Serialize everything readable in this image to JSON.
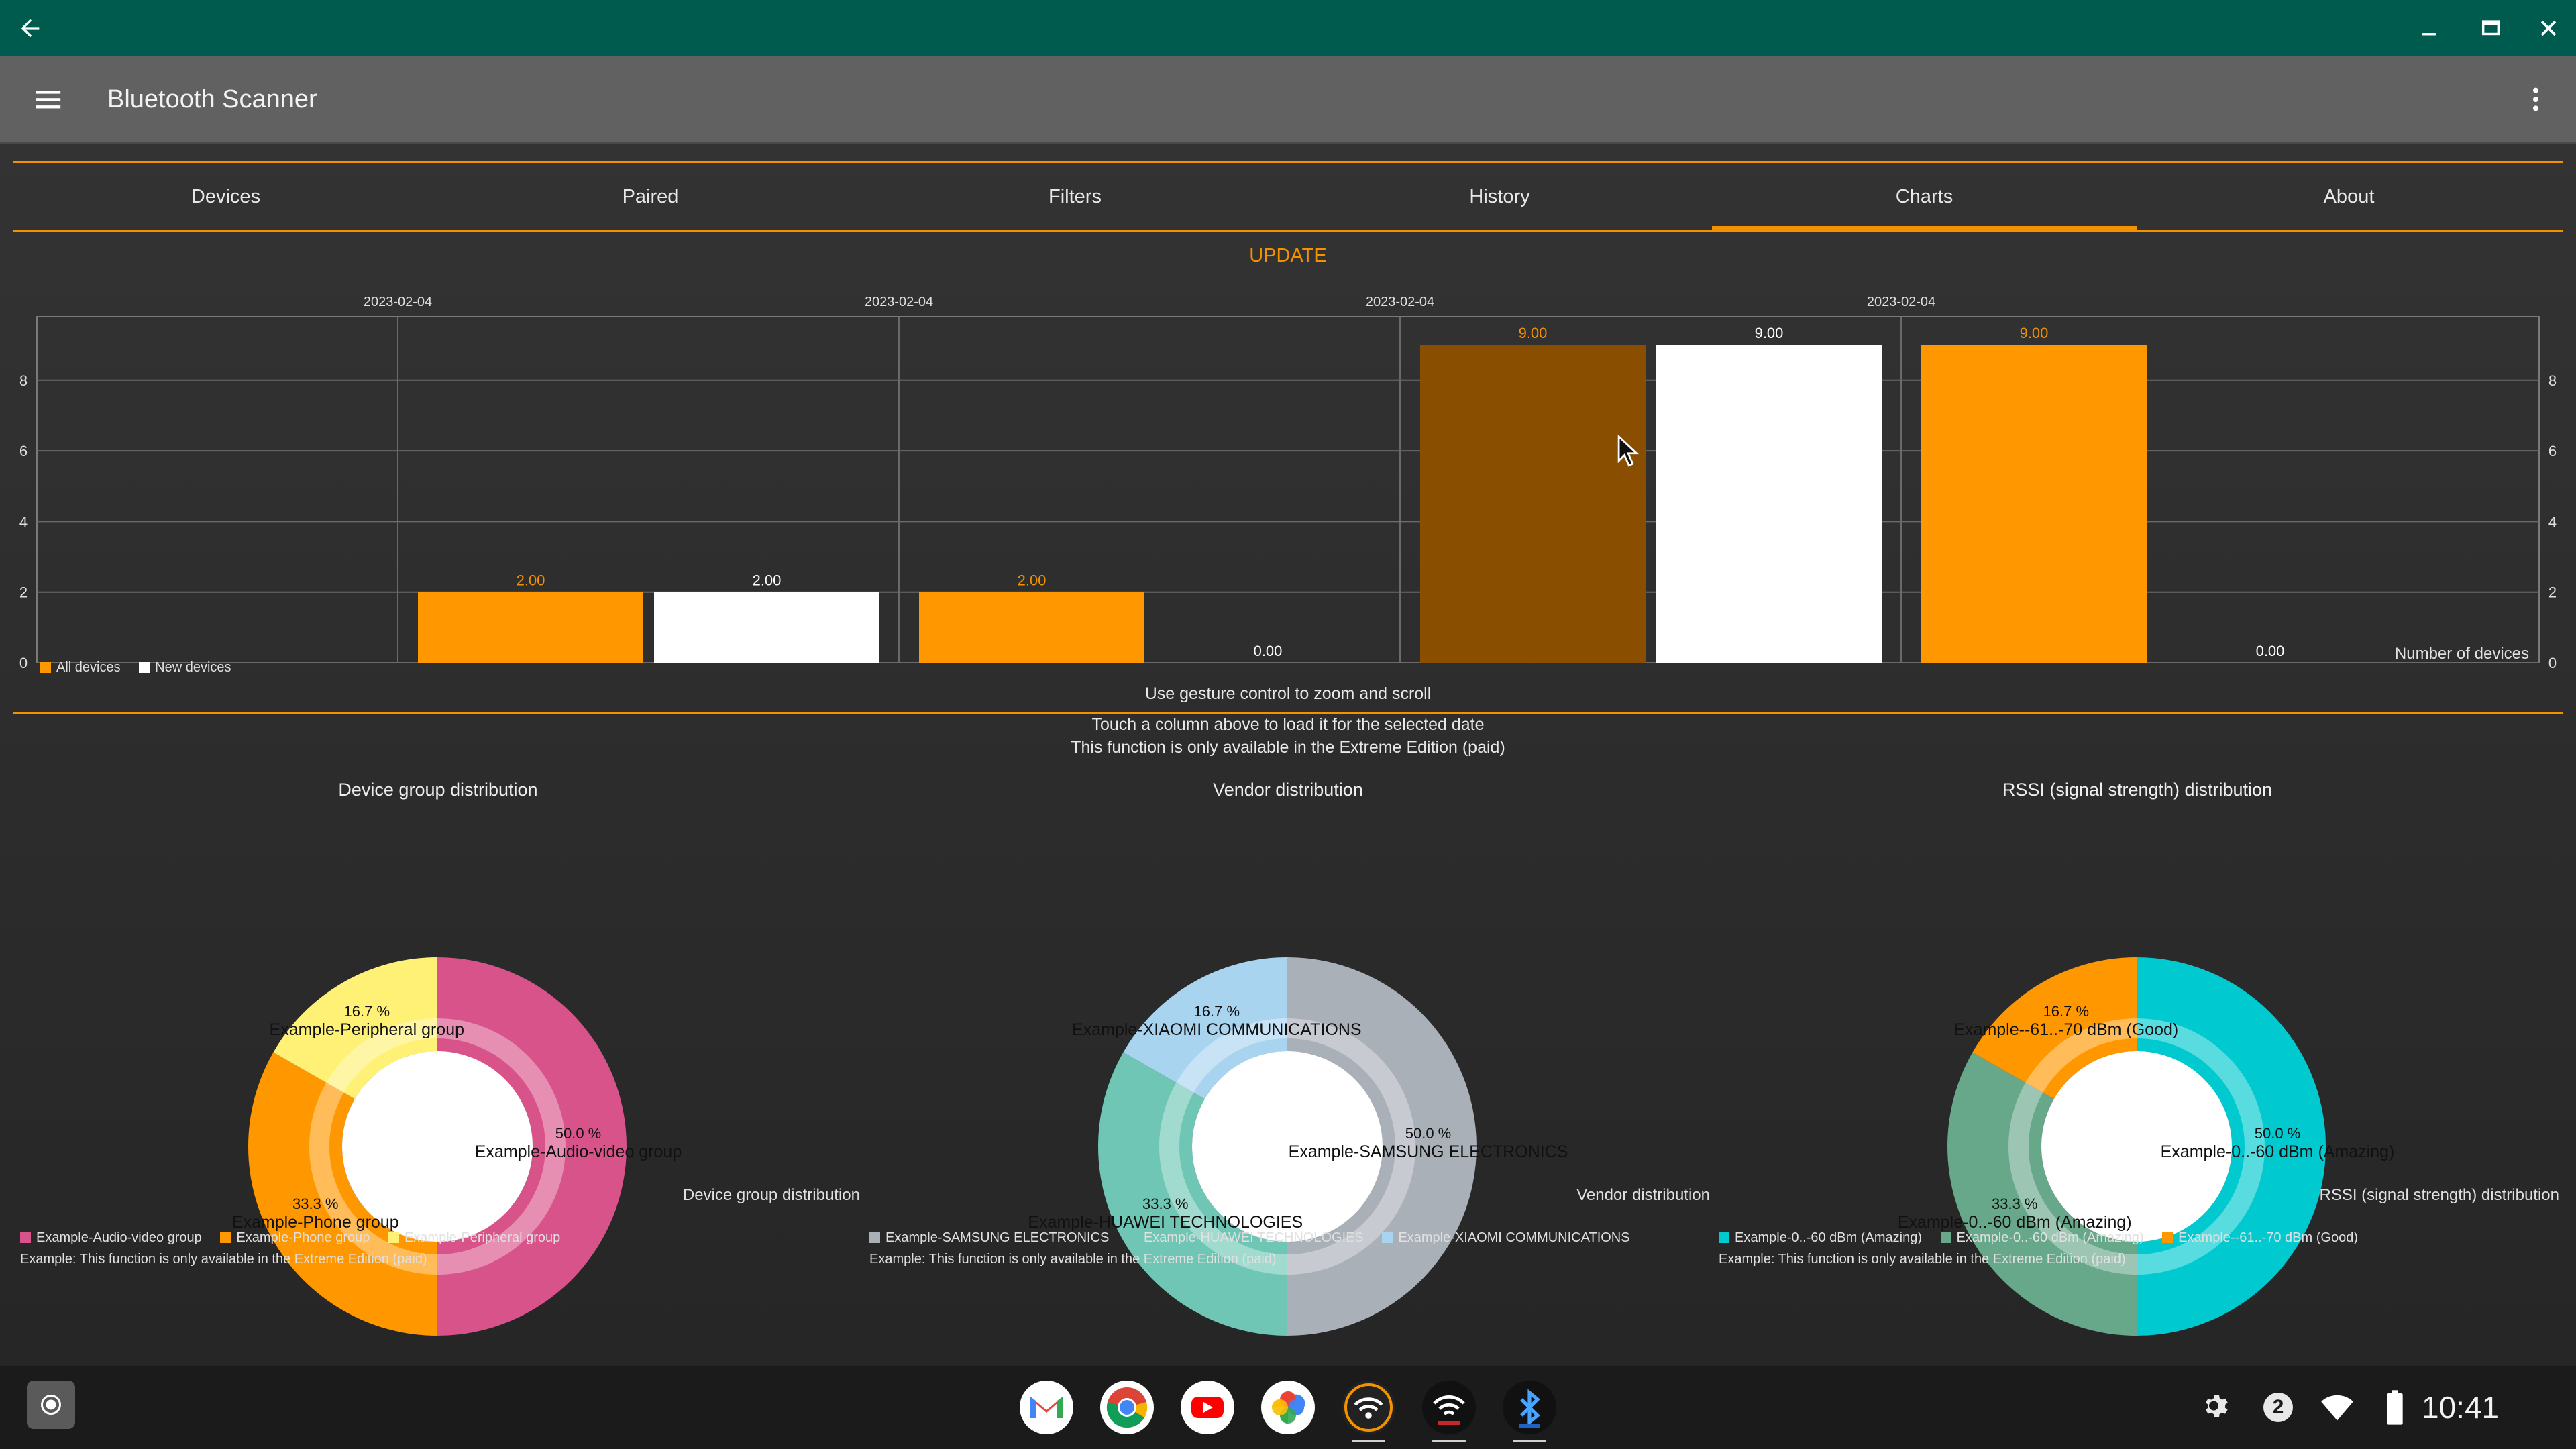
{
  "app": {
    "title": "Bluetooth Scanner"
  },
  "icons": {
    "back": "back-arrow-icon",
    "minimize": "minimize-icon",
    "maximize": "maximize-icon",
    "close": "close-icon",
    "menu": "hamburger-menu-icon",
    "overflow": "more-vert-icon"
  },
  "tabs": [
    {
      "label": "Devices"
    },
    {
      "label": "Paired"
    },
    {
      "label": "Filters"
    },
    {
      "label": "History"
    },
    {
      "label": "Charts",
      "active": true
    },
    {
      "label": "About"
    }
  ],
  "update_label": "UPDATE",
  "colors": {
    "accent": "#f39200",
    "appbar": "#616161",
    "titlebar": "#005b4f",
    "all_devices": "#ff9800",
    "new_devices": "#ffffff",
    "selected_bar": "#8a4e00",
    "pink": "#d9538b",
    "orange": "#ff9800",
    "yellow": "#fff176",
    "gray": "#aab0b8",
    "teal": "#6fc6b4",
    "lightblue": "#a9d4f0",
    "cyan": "#00c9d0",
    "green": "#68a88a"
  },
  "chart_data": {
    "type": "bar",
    "categories": [
      "2023-02-04",
      "2023-02-04",
      "2023-02-04",
      "2023-02-04"
    ],
    "category_labels": [
      "",
      "2023-02-04",
      "2023-02-04",
      "2023-02-04",
      "2023-02-04",
      ""
    ],
    "series": [
      {
        "name": "All devices",
        "color": "#ff9800",
        "values": [
          2.0,
          2.0,
          9.0,
          9.0
        ]
      },
      {
        "name": "New devices",
        "color": "#ffffff",
        "values": [
          2.0,
          0.0,
          9.0,
          0.0
        ]
      }
    ],
    "value_labels": [
      [
        "2.00",
        "2.00",
        "9.00",
        "9.00"
      ],
      [
        "2.00",
        "0.00",
        "9.00",
        "0.00"
      ]
    ],
    "ylim": [
      0,
      9
    ],
    "y_ticks": [
      "0",
      "2",
      "4",
      "6",
      "8"
    ],
    "ylabel_right": "Number of devices",
    "grid": true,
    "legend_placement": "bottom-left",
    "selected": {
      "category": 2,
      "series": 0
    }
  },
  "texts": {
    "gesture_hint": "Use gesture control to zoom and scroll",
    "touch_hint": "Touch a column above to load it for the selected date",
    "extreme_hint": "This function is only available in the Extreme Edition (paid)"
  },
  "pies": [
    {
      "title": "Device group distribution",
      "description": "Device group distribution",
      "footer": "Example: This function is only available in the Extreme Edition (paid)",
      "slices": [
        {
          "name": "Example-Audio-video group",
          "pct_label": "50.0 %",
          "value": 50.0,
          "color": "#d9538b"
        },
        {
          "name": "Example-Phone group",
          "pct_label": "33.3 %",
          "value": 33.3,
          "color": "#ff9800"
        },
        {
          "name": "Example-Peripheral group",
          "pct_label": "16.7 %",
          "value": 16.7,
          "color": "#fff176"
        }
      ]
    },
    {
      "title": "Vendor distribution",
      "description": "Vendor distribution",
      "footer": "Example: This function is only available in the Extreme Edition (paid)",
      "slices": [
        {
          "name": "Example-SAMSUNG ELECTRONICS",
          "pct_label": "50.0 %",
          "value": 50.0,
          "color": "#aab0b8"
        },
        {
          "name": "Example-HUAWEI TECHNOLOGIES",
          "pct_label": "33.3 %",
          "value": 33.3,
          "color": "#6fc6b4"
        },
        {
          "name": "Example-XIAOMI COMMUNICATIONS",
          "pct_label": "16.7 %",
          "value": 16.7,
          "color": "#a9d4f0"
        }
      ]
    },
    {
      "title": "RSSI (signal strength) distribution",
      "description": "RSSI (signal strength) distribution",
      "footer": "Example: This function is only available in the Extreme Edition (paid)",
      "slices": [
        {
          "name": "Example-0..-60 dBm (Amazing)",
          "pct_label": "50.0 %",
          "value": 50.0,
          "color": "#00c9d0"
        },
        {
          "name": "Example-0..-60 dBm (Amazing)",
          "pct_label": "33.3 %",
          "value": 33.3,
          "color": "#68a88a"
        },
        {
          "name": "Example--61..-70 dBm (Good)",
          "pct_label": "16.7 %",
          "value": 16.7,
          "color": "#ff9800"
        }
      ]
    }
  ],
  "taskbar": {
    "apps": [
      {
        "name": "gmail-icon",
        "color": "#ffffff"
      },
      {
        "name": "chrome-icon",
        "color": "#ffffff"
      },
      {
        "name": "youtube-icon",
        "color": "#ffffff"
      },
      {
        "name": "photos-icon",
        "color": "#ffffff"
      },
      {
        "name": "wifi-scanner-app-icon",
        "color": "#222222"
      },
      {
        "name": "wifi-discover-app-icon",
        "color": "#111111"
      },
      {
        "name": "bluetooth-discover-app-icon",
        "color": "#111111"
      }
    ],
    "notification_count": "2",
    "clock": "10:41"
  }
}
